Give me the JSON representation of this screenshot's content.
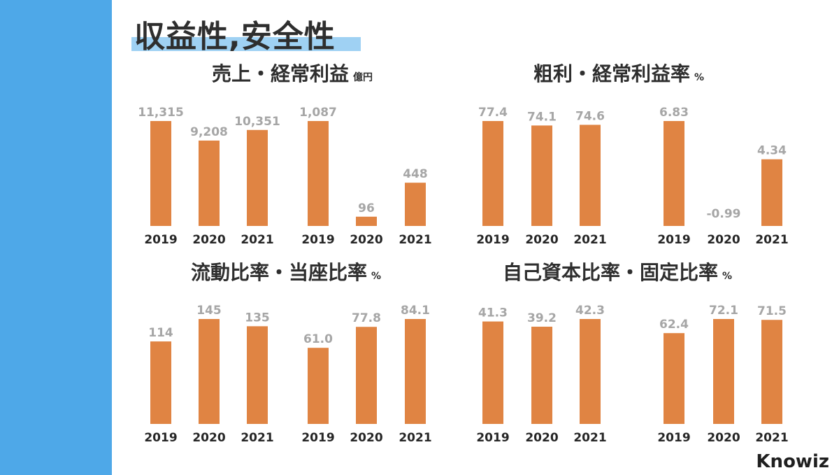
{
  "page_title": "収益性,安全性",
  "brand": "Knowiz",
  "colors": {
    "sidebar": "#4ea8e8",
    "highlight": "#9fd1f3",
    "bar": "#e08443",
    "value_text": "#a6a6a6",
    "label_text": "#262626"
  },
  "sections": [
    {
      "title": "売上・経常利益",
      "unit": "億円"
    },
    {
      "title": "粗利・経常利益率",
      "unit": "%"
    },
    {
      "title": "流動比率・当座比率",
      "unit": "%"
    },
    {
      "title": "自己資本比率・固定比率",
      "unit": "%"
    }
  ],
  "chart_data": [
    {
      "type": "bar",
      "categories": [
        "2019",
        "2020",
        "2021"
      ],
      "values": [
        11315,
        9208,
        10351
      ],
      "value_labels": [
        "11,315",
        "9,208",
        "10,351"
      ]
    },
    {
      "type": "bar",
      "categories": [
        "2019",
        "2020",
        "2021"
      ],
      "values": [
        1087,
        96,
        448
      ],
      "value_labels": [
        "1,087",
        "96",
        "448"
      ]
    },
    {
      "type": "bar",
      "categories": [
        "2019",
        "2020",
        "2021"
      ],
      "values": [
        77.4,
        74.1,
        74.6
      ],
      "value_labels": [
        "77.4",
        "74.1",
        "74.6"
      ]
    },
    {
      "type": "bar",
      "categories": [
        "2019",
        "2020",
        "2021"
      ],
      "values": [
        6.83,
        -0.99,
        4.34
      ],
      "value_labels": [
        "6.83",
        "-0.99",
        "4.34"
      ]
    },
    {
      "type": "bar",
      "categories": [
        "2019",
        "2020",
        "2021"
      ],
      "values": [
        114,
        145,
        135
      ],
      "value_labels": [
        "114",
        "145",
        "135"
      ]
    },
    {
      "type": "bar",
      "categories": [
        "2019",
        "2020",
        "2021"
      ],
      "values": [
        61.0,
        77.8,
        84.1
      ],
      "value_labels": [
        "61.0",
        "77.8",
        "84.1"
      ]
    },
    {
      "type": "bar",
      "categories": [
        "2019",
        "2020",
        "2021"
      ],
      "values": [
        41.3,
        39.2,
        42.3
      ],
      "value_labels": [
        "41.3",
        "39.2",
        "42.3"
      ]
    },
    {
      "type": "bar",
      "categories": [
        "2019",
        "2020",
        "2021"
      ],
      "values": [
        62.4,
        72.1,
        71.5
      ],
      "value_labels": [
        "62.4",
        "72.1",
        "71.5"
      ]
    }
  ]
}
